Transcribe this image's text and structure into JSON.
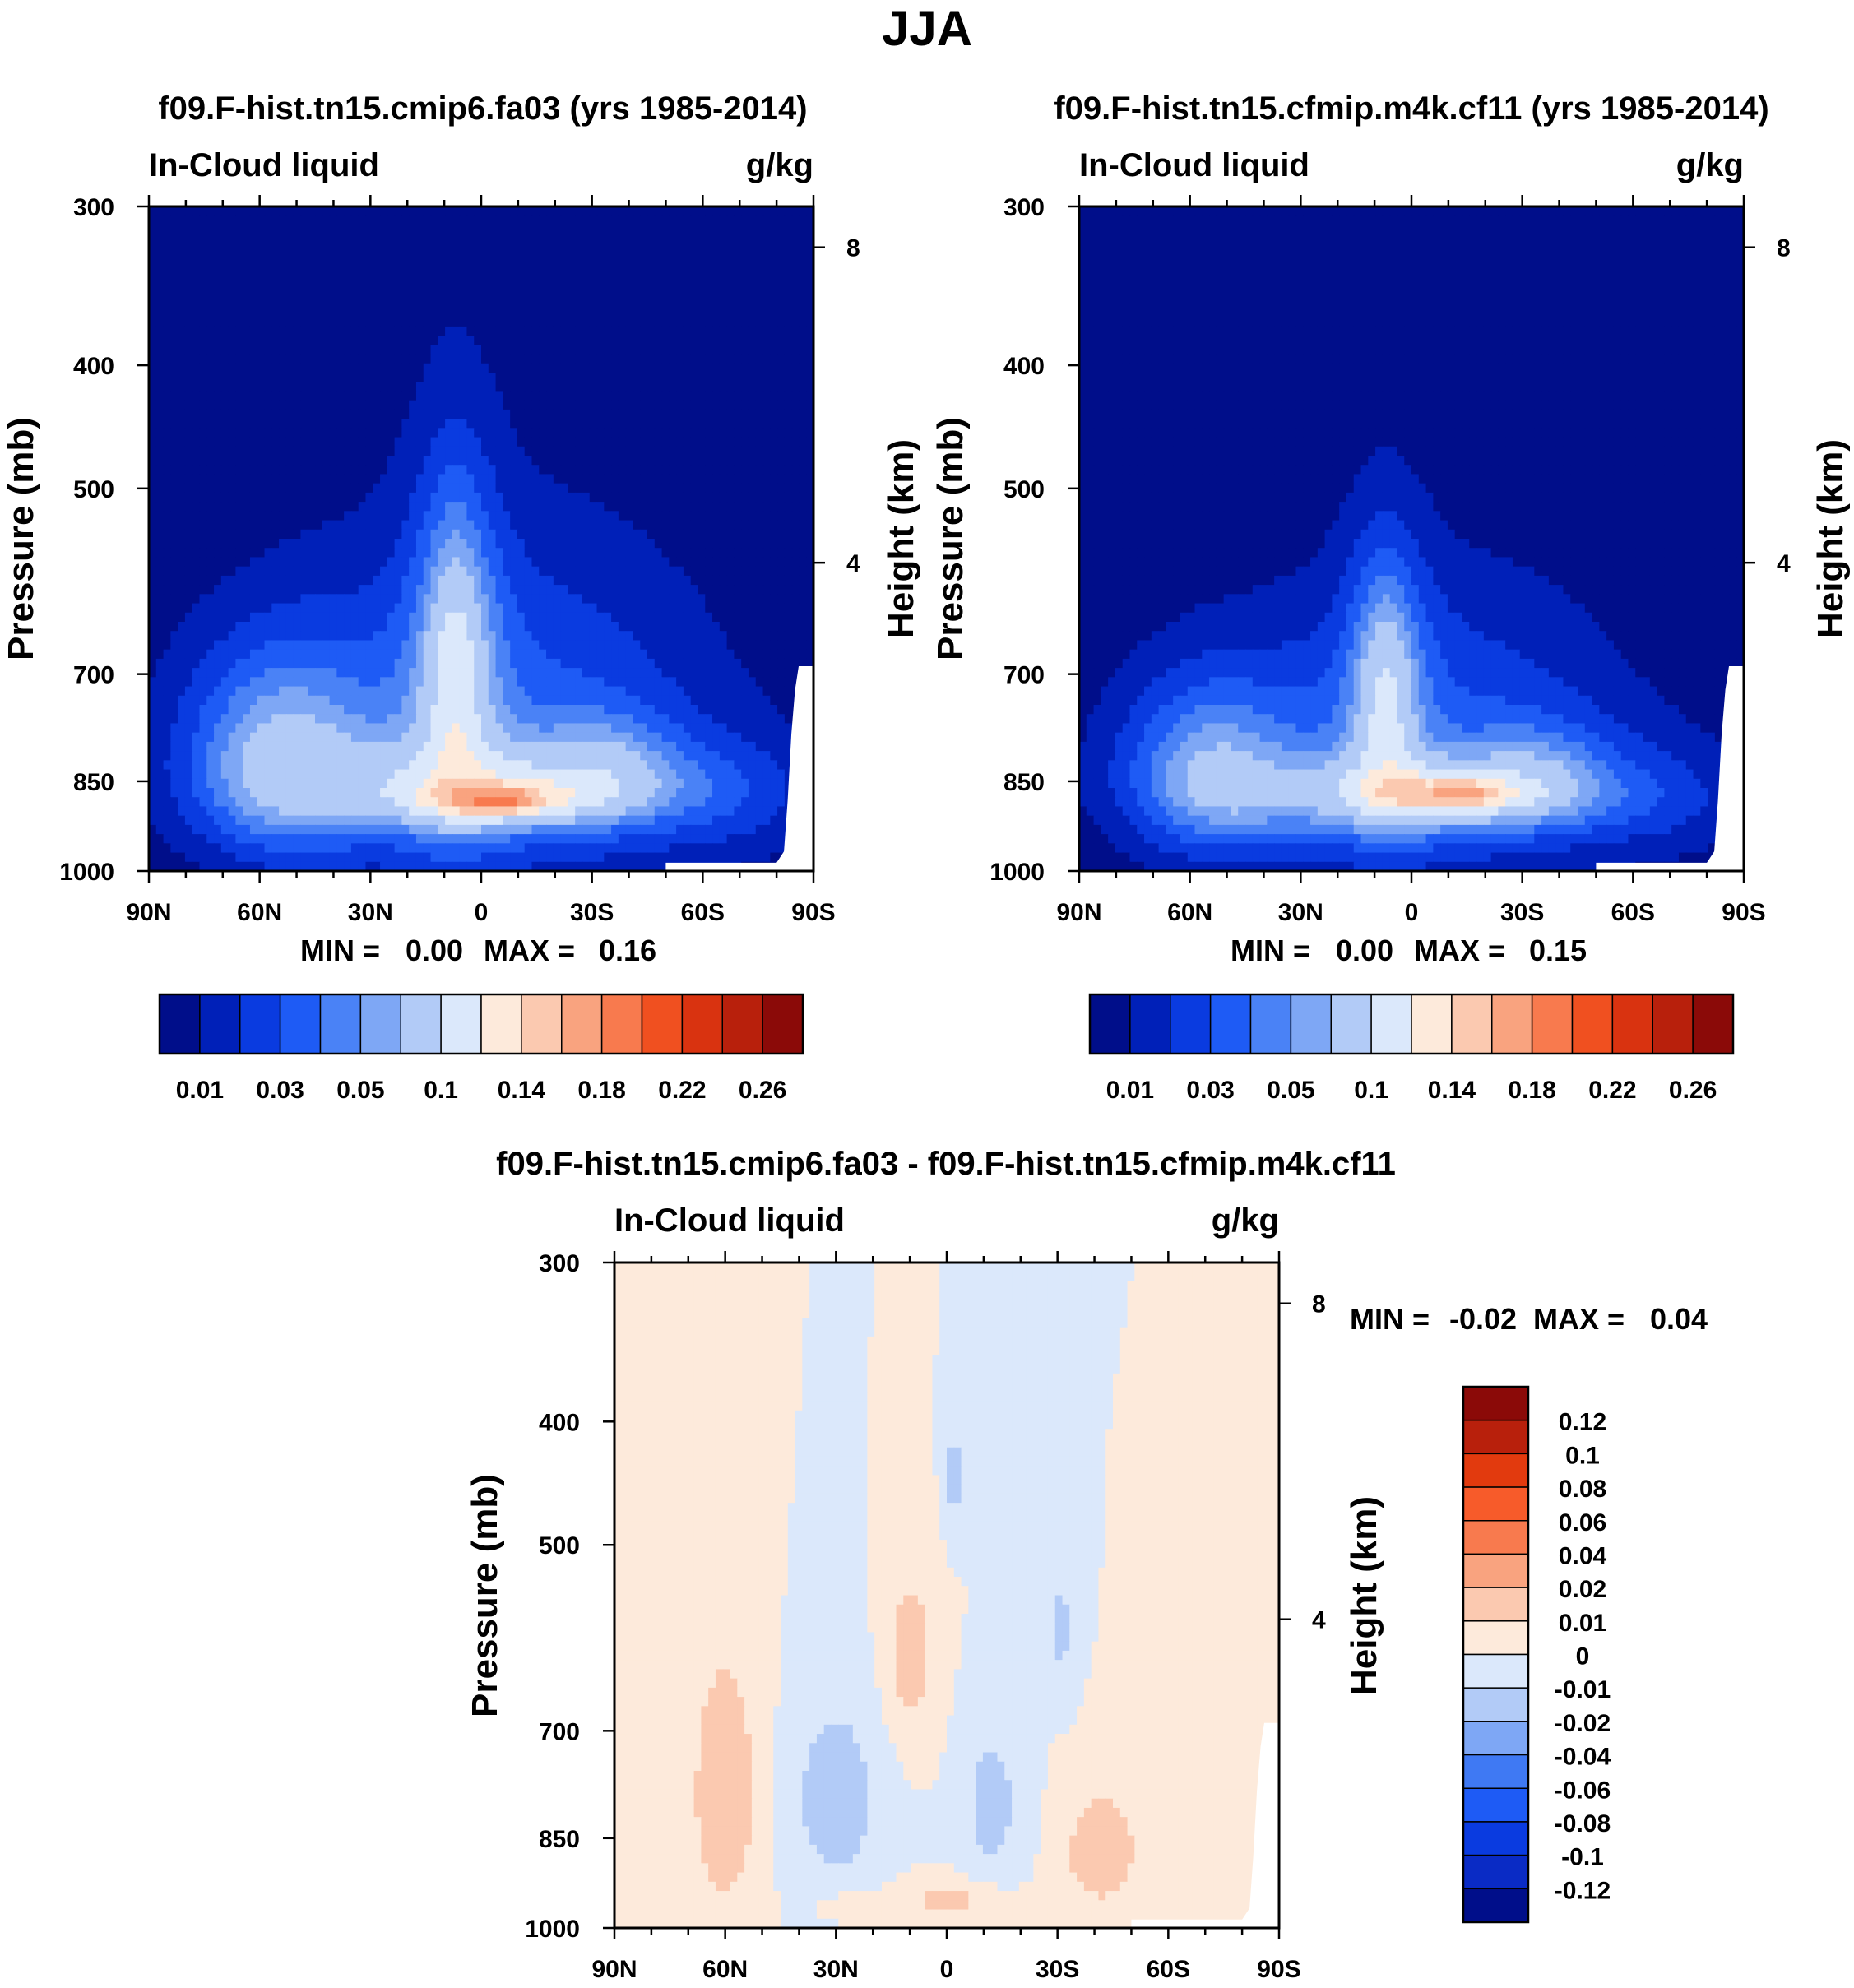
{
  "figure_title": "JJA",
  "colors": {
    "sequential": [
      "#000e8a",
      "#0020b8",
      "#0a3be0",
      "#1e5bf5",
      "#4a82f6",
      "#7ea7f5",
      "#b2cbf7",
      "#dbe8fb",
      "#fdeadb",
      "#fbc9b0",
      "#f9a37f",
      "#f87a4e",
      "#f05020",
      "#d93310",
      "#b8200c",
      "#8b0a08"
    ],
    "diverging": [
      "#000e8a",
      "#0a2bc5",
      "#0a3be0",
      "#1e5bf5",
      "#3f79f3",
      "#7ea7f5",
      "#b2cbf7",
      "#dbe8fb",
      "#fdeadb",
      "#fbc9b0",
      "#f9a37f",
      "#f87a4e",
      "#f75b2a",
      "#e23a0e",
      "#b8200c",
      "#8b0a08"
    ]
  },
  "chart_data": [
    {
      "type": "contour",
      "title": "f09.F-hist.tn15.cmip6.fa03 (yrs 1985-2014)",
      "left_string": "In-Cloud liquid",
      "right_string": "g/kg",
      "ylabel": "Pressure (mb)",
      "y2label": "Height (km)",
      "x_ticks": [
        "90N",
        "60N",
        "30N",
        "0",
        "30S",
        "60S",
        "90S"
      ],
      "y_ticks": [
        "300",
        "400",
        "500",
        "700",
        "850",
        "1000"
      ],
      "y_tick_values": [
        300,
        400,
        500,
        700,
        850,
        1000
      ],
      "y2_ticks": [
        "8",
        "4"
      ],
      "y2_tick_values": [
        8,
        4
      ],
      "xlim": [
        90,
        -90
      ],
      "ylim": [
        1000,
        300
      ],
      "min_label": "MIN =",
      "min_value": "0.00",
      "max_label": "MAX =",
      "max_value": "0.16",
      "colorbar_labels": [
        "0.01",
        "0.03",
        "0.05",
        "0.1",
        "0.14",
        "0.18",
        "0.22",
        "0.26"
      ],
      "levels": [
        0.01,
        0.02,
        0.03,
        0.04,
        0.05,
        0.06,
        0.08,
        0.1,
        0.12,
        0.14,
        0.16,
        0.18,
        0.2,
        0.22,
        0.24,
        0.26
      ],
      "field": [
        {
          "lat": -70,
          "p": 880,
          "clat": 25,
          "cp": 110,
          "v": 0.012
        },
        {
          "lat": 55,
          "p": 800,
          "clat": 35,
          "cp": 180,
          "v": 0.02
        },
        {
          "lat": 55,
          "p": 820,
          "clat": 22,
          "cp": 140,
          "v": 0.034
        },
        {
          "lat": -5,
          "p": 780,
          "clat": 60,
          "cp": 260,
          "v": 0.035
        },
        {
          "lat": 7,
          "p": 680,
          "clat": 13,
          "cp": 240,
          "v": 0.035
        },
        {
          "lat": -5,
          "p": 860,
          "clat": 52,
          "cp": 70,
          "v": 0.05
        },
        {
          "lat": 7,
          "p": 700,
          "clat": 7,
          "cp": 150,
          "v": 0.03
        },
        {
          "lat": -5,
          "p": 880,
          "clat": 22,
          "cp": 30,
          "v": 0.05
        },
        {
          "lat": -35,
          "p": 820,
          "clat": 18,
          "cp": 85,
          "v": 0.02
        },
        {
          "lat": -5,
          "p": 880,
          "clat": 9,
          "cp": 18,
          "v": 0.04
        }
      ]
    },
    {
      "type": "contour",
      "title": "f09.F-hist.tn15.cfmip.m4k.cf11 (yrs 1985-2014)",
      "left_string": "In-Cloud liquid",
      "right_string": "g/kg",
      "ylabel": "Pressure (mb)",
      "y2label": "Height (km)",
      "x_ticks": [
        "90N",
        "60N",
        "30N",
        "0",
        "30S",
        "60S",
        "90S"
      ],
      "y_ticks": [
        "300",
        "400",
        "500",
        "700",
        "850",
        "1000"
      ],
      "y_tick_values": [
        300,
        400,
        500,
        700,
        850,
        1000
      ],
      "y2_ticks": [
        "8",
        "4"
      ],
      "y2_tick_values": [
        8,
        4
      ],
      "xlim": [
        90,
        -90
      ],
      "ylim": [
        1000,
        300
      ],
      "min_label": "MIN =",
      "min_value": "0.00",
      "max_label": "MAX =",
      "max_value": "0.15",
      "colorbar_labels": [
        "0.01",
        "0.03",
        "0.05",
        "0.1",
        "0.14",
        "0.18",
        "0.22",
        "0.26"
      ],
      "levels": [
        0.01,
        0.02,
        0.03,
        0.04,
        0.05,
        0.06,
        0.08,
        0.1,
        0.12,
        0.14,
        0.16,
        0.18,
        0.2,
        0.22,
        0.24,
        0.26
      ],
      "field": [
        {
          "lat": -70,
          "p": 880,
          "clat": 25,
          "cp": 110,
          "v": 0.012
        },
        {
          "lat": 55,
          "p": 820,
          "clat": 33,
          "cp": 160,
          "v": 0.02
        },
        {
          "lat": 55,
          "p": 840,
          "clat": 20,
          "cp": 120,
          "v": 0.03
        },
        {
          "lat": -5,
          "p": 800,
          "clat": 55,
          "cp": 230,
          "v": 0.032
        },
        {
          "lat": 7,
          "p": 720,
          "clat": 12,
          "cp": 200,
          "v": 0.03
        },
        {
          "lat": -5,
          "p": 870,
          "clat": 50,
          "cp": 65,
          "v": 0.048
        },
        {
          "lat": 7,
          "p": 730,
          "clat": 7,
          "cp": 130,
          "v": 0.028
        },
        {
          "lat": -10,
          "p": 870,
          "clat": 20,
          "cp": 30,
          "v": 0.048
        },
        {
          "lat": -35,
          "p": 830,
          "clat": 18,
          "cp": 80,
          "v": 0.02
        },
        {
          "lat": -15,
          "p": 870,
          "clat": 8,
          "cp": 16,
          "v": 0.035
        }
      ]
    },
    {
      "type": "contour",
      "title": "f09.F-hist.tn15.cmip6.fa03 - f09.F-hist.tn15.cfmip.m4k.cf11",
      "left_string": "In-Cloud liquid",
      "right_string": "g/kg",
      "ylabel": "Pressure (mb)",
      "y2label": "Height (km)",
      "x_ticks": [
        "90N",
        "60N",
        "30N",
        "0",
        "30S",
        "60S",
        "90S"
      ],
      "y_ticks": [
        "300",
        "400",
        "500",
        "700",
        "850",
        "1000"
      ],
      "y_tick_values": [
        300,
        400,
        500,
        700,
        850,
        1000
      ],
      "y2_ticks": [
        "8",
        "4"
      ],
      "y2_tick_values": [
        8,
        4
      ],
      "xlim": [
        90,
        -90
      ],
      "ylim": [
        1000,
        300
      ],
      "min_label": "MIN =",
      "min_value": "-0.02",
      "max_label": "MAX =",
      "max_value": "0.04",
      "colorbar_labels": [
        "0.12",
        "0.1",
        "0.08",
        "0.06",
        "0.04",
        "0.02",
        "0.01",
        "0",
        "-0.01",
        "-0.02",
        "-0.04",
        "-0.06",
        "-0.08",
        "-0.1",
        "-0.12"
      ],
      "levels": [
        -0.12,
        -0.1,
        -0.08,
        -0.06,
        -0.04,
        -0.02,
        -0.01,
        0,
        0.01,
        0.02,
        0.04,
        0.06,
        0.08,
        0.1,
        0.12
      ],
      "field": [
        {
          "lat": 60,
          "p": 780,
          "clat": 10,
          "cp": 200,
          "v": 0.018
        },
        {
          "lat": 10,
          "p": 610,
          "clat": 7,
          "cp": 100,
          "v": 0.016
        },
        {
          "lat": -42,
          "p": 870,
          "clat": 10,
          "cp": 90,
          "v": 0.02
        },
        {
          "lat": -2,
          "p": 950,
          "clat": 14,
          "cp": 35,
          "v": 0.014
        },
        {
          "lat": 25,
          "p": 960,
          "clat": 10,
          "cp": 30,
          "v": 0.01
        },
        {
          "lat": 30,
          "p": 790,
          "clat": 13,
          "cp": 150,
          "v": -0.016
        },
        {
          "lat": -12,
          "p": 800,
          "clat": 8,
          "cp": 120,
          "v": -0.015
        },
        {
          "lat": -2,
          "p": 440,
          "clat": 2.5,
          "cp": 45,
          "v": -0.015
        },
        {
          "lat": -31,
          "p": 580,
          "clat": 3,
          "cp": 60,
          "v": -0.014
        }
      ]
    }
  ]
}
